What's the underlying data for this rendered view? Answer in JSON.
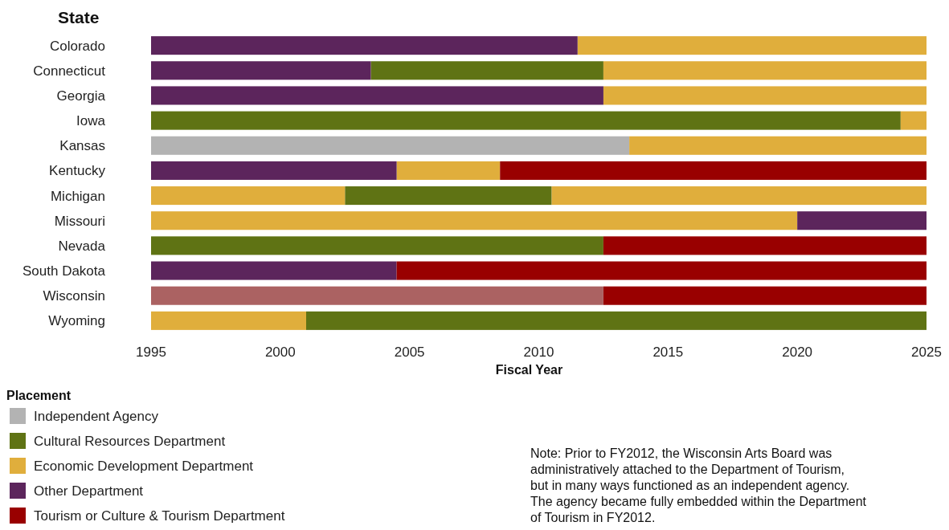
{
  "chart_data": {
    "type": "bar",
    "orientation": "horizontal",
    "ylabel": "State",
    "xlabel": "Fiscal Year",
    "legend_title": "Placement",
    "legend": "bottom left",
    "grid": false,
    "categories": [
      "Colorado",
      "Connecticut",
      "Georgia",
      "Iowa",
      "Kansas",
      "Kentucky",
      "Michigan",
      "Missouri",
      "Nevada",
      "South Dakota",
      "Wisconsin",
      "Wyoming"
    ],
    "xlim": [
      1995,
      2025
    ],
    "xticks": [
      1995,
      2000,
      2005,
      2010,
      2015,
      2020,
      2025
    ],
    "series": [
      {
        "name": "Independent Agency",
        "color": "#b3b3b3",
        "base": [
          null,
          null,
          null,
          null,
          1995,
          null,
          null,
          null,
          null,
          null,
          null,
          null
        ],
        "values": [
          null,
          null,
          null,
          null,
          18.5,
          null,
          null,
          null,
          null,
          null,
          null,
          null
        ]
      },
      {
        "name": "Cultural Resources Department",
        "color": "#5f7314",
        "base": [
          null,
          2003.5,
          null,
          1995,
          null,
          null,
          2002.5,
          null,
          1995,
          null,
          null,
          2001
        ],
        "values": [
          null,
          9,
          null,
          29,
          null,
          null,
          8,
          null,
          17.5,
          null,
          null,
          24
        ]
      },
      {
        "name": "Economic Development Department",
        "color": "#e0ae3c",
        "base": [
          2011.5,
          2012.5,
          2012.5,
          2024,
          2013.5,
          2004.5,
          1995,
          1995,
          null,
          null,
          null,
          1995
        ],
        "values": [
          13.5,
          12.5,
          12.5,
          1,
          11.5,
          4,
          7.5,
          25,
          null,
          null,
          null,
          6
        ]
      },
      {
        "name": "Other Department",
        "color": "#5c255c",
        "base": [
          1995,
          1995,
          1995,
          null,
          null,
          1995,
          null,
          2020,
          null,
          1995,
          null,
          null
        ],
        "values": [
          16.5,
          8.5,
          17.5,
          null,
          null,
          9.5,
          null,
          5,
          null,
          9.5,
          null,
          null
        ]
      },
      {
        "name": "Tourism or Culture & Tourism Department",
        "color": "#990000",
        "base": [
          null,
          null,
          null,
          null,
          null,
          2008.5,
          null,
          null,
          2012.5,
          2004.5,
          2012.5,
          null
        ],
        "values": [
          null,
          null,
          null,
          null,
          null,
          16.5,
          null,
          null,
          12.5,
          20.5,
          12.5,
          null
        ]
      },
      {
        "color": "#e0ae3c",
        "base": [
          null,
          null,
          null,
          null,
          null,
          null,
          2010.5,
          null,
          null,
          null,
          null,
          null
        ],
        "values": [
          null,
          null,
          null,
          null,
          null,
          null,
          14.5,
          null,
          null,
          null,
          null,
          null
        ]
      },
      {
        "color": "#ab6262",
        "base": [
          null,
          null,
          null,
          null,
          null,
          null,
          null,
          null,
          null,
          null,
          1995,
          null
        ],
        "values": [
          null,
          null,
          null,
          null,
          null,
          null,
          null,
          null,
          null,
          null,
          17.5,
          null
        ]
      }
    ],
    "annotations": [
      "Note: Prior to FY2012, the Wisconsin Arts Board was administratively attached to the Department of Tourism, but in many ways functioned as an independent agency. The agency became fully embedded within the Department of Tourism in FY2012."
    ]
  }
}
